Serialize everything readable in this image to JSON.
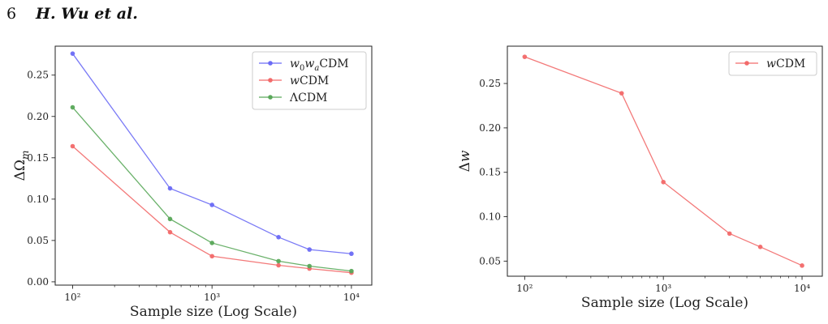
{
  "header": {
    "page_number": "6",
    "authors": "H. Wu et al."
  },
  "chart_data": [
    {
      "type": "line",
      "x_scale": "log",
      "x": [
        100,
        500,
        1000,
        3000,
        5000,
        10000
      ],
      "xlim": [
        75,
        14000
      ],
      "ylim": [
        -0.004,
        0.285
      ],
      "yticks": [
        0.0,
        0.05,
        0.1,
        0.15,
        0.2,
        0.25
      ],
      "ytick_labels": [
        "0.00",
        "0.05",
        "0.10",
        "0.15",
        "0.20",
        "0.25"
      ],
      "xticks": [
        100,
        1000,
        10000
      ],
      "xtick_labels": [
        "10²",
        "10³",
        "10⁴"
      ],
      "xlabel": "Sample size (Log Scale)",
      "ylabel": "ΔΩm",
      "legend_position": "top-right",
      "series": [
        {
          "name": "w0waCDM",
          "color": "#6b6bf5",
          "values": [
            0.276,
            0.113,
            0.093,
            0.054,
            0.039,
            0.034
          ]
        },
        {
          "name": "wCDM",
          "color": "#f26a6a",
          "values": [
            0.164,
            0.06,
            0.031,
            0.02,
            0.016,
            0.011
          ]
        },
        {
          "name": "ΛCDM",
          "color": "#5aa85a",
          "values": [
            0.211,
            0.076,
            0.047,
            0.025,
            0.019,
            0.013
          ]
        }
      ]
    },
    {
      "type": "line",
      "x_scale": "log",
      "x": [
        100,
        500,
        1000,
        3000,
        5000,
        10000
      ],
      "xlim": [
        75,
        14000
      ],
      "ylim": [
        0.033,
        0.292
      ],
      "yticks": [
        0.05,
        0.1,
        0.15,
        0.2,
        0.25
      ],
      "ytick_labels": [
        "0.05",
        "0.10",
        "0.15",
        "0.20",
        "0.25"
      ],
      "xticks": [
        100,
        1000,
        10000
      ],
      "xtick_labels": [
        "10²",
        "10³",
        "10⁴"
      ],
      "xlabel": "Sample size (Log Scale)",
      "ylabel": "Δw",
      "legend_position": "top-right",
      "series": [
        {
          "name": "wCDM",
          "color": "#f26a6a",
          "values": [
            0.28,
            0.239,
            0.139,
            0.081,
            0.066,
            0.045
          ]
        }
      ]
    }
  ]
}
